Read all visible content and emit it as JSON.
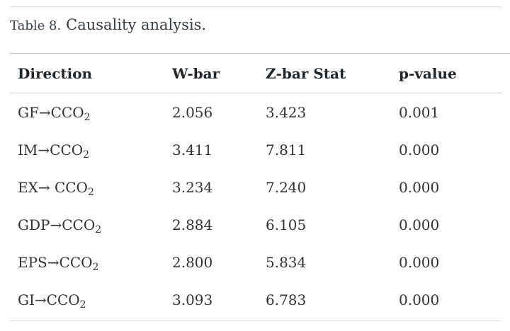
{
  "caption": {
    "label": "Table 8.",
    "title": "Causality analysis."
  },
  "table": {
    "headers": [
      "Direction",
      "W-bar",
      "Z-bar Stat",
      "p-value"
    ],
    "rows": [
      {
        "direction_main": "GF→CCO",
        "direction_sub": "2",
        "w_bar": "2.056",
        "z_bar": "3.423",
        "p_value": "0.001"
      },
      {
        "direction_main": "IM→CCO",
        "direction_sub": "2",
        "w_bar": "3.411",
        "z_bar": "7.811",
        "p_value": "0.000"
      },
      {
        "direction_main": "EX→ CCO",
        "direction_sub": "2",
        "w_bar": "3.234",
        "z_bar": "7.240",
        "p_value": "0.000"
      },
      {
        "direction_main": "GDP→CCO",
        "direction_sub": "2",
        "w_bar": "2.884",
        "z_bar": "6.105",
        "p_value": "0.000"
      },
      {
        "direction_main": "EPS→CCO",
        "direction_sub": "2",
        "w_bar": "2.800",
        "z_bar": "5.834",
        "p_value": "0.000"
      },
      {
        "direction_main": "GI→CCO",
        "direction_sub": "2",
        "w_bar": "3.093",
        "z_bar": "6.783",
        "p_value": "0.000"
      }
    ]
  },
  "colors": {
    "caption_text": "#363d46",
    "header_text": "#21262b",
    "body_text": "#333333",
    "rule_dark": "#c7c7c7",
    "rule_light": "#e2e2e2"
  }
}
